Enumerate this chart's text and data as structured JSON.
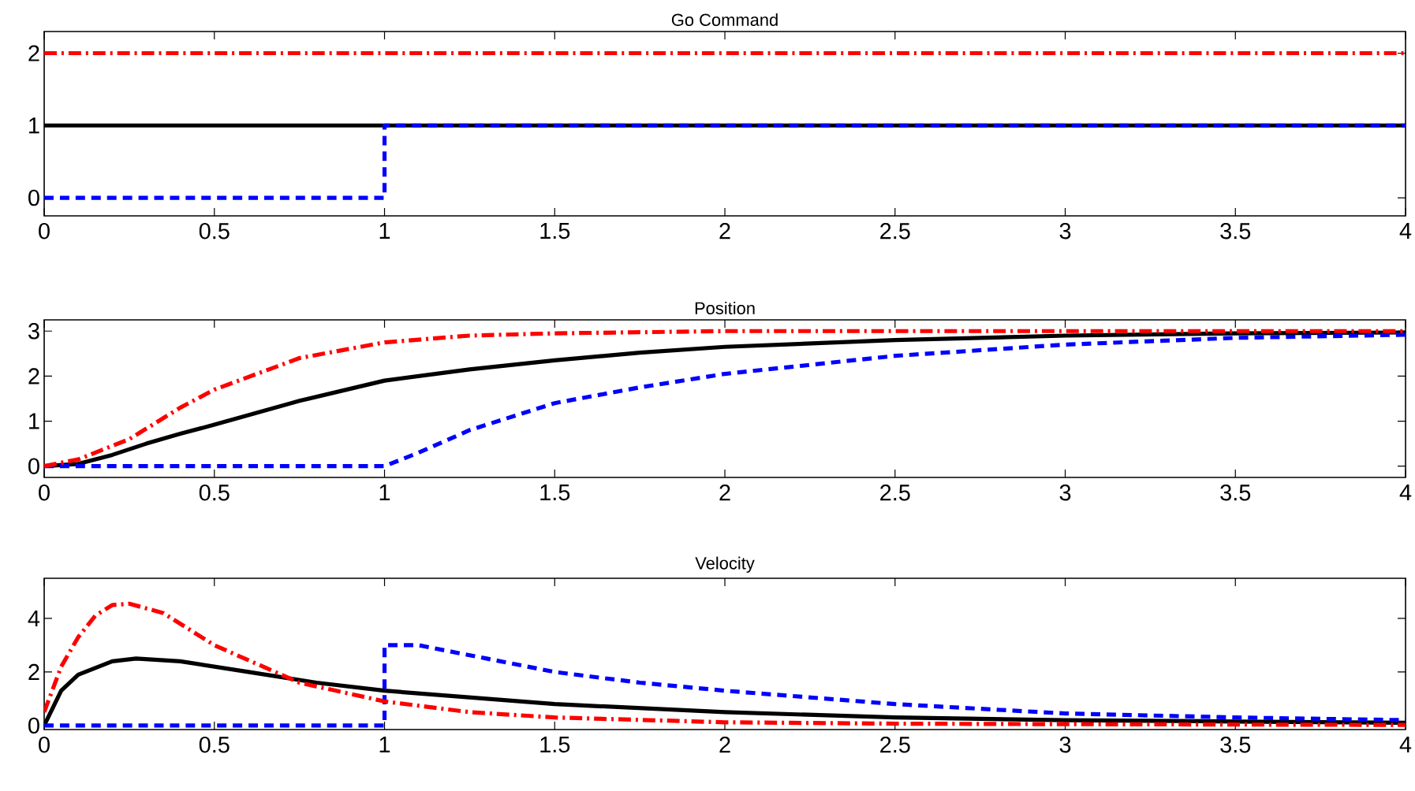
{
  "chart_data": [
    {
      "type": "line",
      "title": "Go Command",
      "xlim": [
        0,
        4
      ],
      "ylim": [
        -0.25,
        2.3
      ],
      "xticks": [
        0,
        0.5,
        1,
        1.5,
        2,
        2.5,
        3,
        3.5,
        4
      ],
      "yticks": [
        0,
        1,
        2
      ],
      "series": [
        {
          "color": "#000000",
          "line_style": "solid",
          "x": [
            0,
            4
          ],
          "values": [
            1,
            1
          ]
        },
        {
          "color": "#0000ff",
          "line_style": "dashed",
          "x": [
            0,
            1,
            1,
            4
          ],
          "values": [
            0,
            0,
            1,
            1
          ]
        },
        {
          "color": "#ff0000",
          "line_style": "dashdot",
          "x": [
            0,
            4
          ],
          "values": [
            2,
            2
          ]
        }
      ]
    },
    {
      "type": "line",
      "title": "Position",
      "xlim": [
        0,
        4
      ],
      "ylim": [
        -0.25,
        3.25
      ],
      "xticks": [
        0,
        0.5,
        1,
        1.5,
        2,
        2.5,
        3,
        3.5,
        4
      ],
      "yticks": [
        0,
        1,
        2,
        3
      ],
      "series": [
        {
          "color": "#000000",
          "line_style": "solid",
          "x": [
            0,
            0.1,
            0.2,
            0.3,
            0.4,
            0.5,
            0.75,
            1,
            1.25,
            1.5,
            1.75,
            2,
            2.5,
            3,
            3.5,
            4
          ],
          "values": [
            0,
            0.05,
            0.25,
            0.5,
            0.72,
            0.92,
            1.45,
            1.9,
            2.15,
            2.35,
            2.52,
            2.65,
            2.8,
            2.9,
            2.95,
            2.97
          ]
        },
        {
          "color": "#0000ff",
          "line_style": "dashed",
          "x": [
            0,
            1,
            1.1,
            1.25,
            1.5,
            1.75,
            2,
            2.5,
            3,
            3.5,
            4
          ],
          "values": [
            0,
            0,
            0.3,
            0.8,
            1.4,
            1.75,
            2.05,
            2.45,
            2.7,
            2.85,
            2.92
          ]
        },
        {
          "color": "#ff0000",
          "line_style": "dashdot",
          "x": [
            0,
            0.1,
            0.25,
            0.4,
            0.5,
            0.75,
            1,
            1.25,
            1.5,
            2,
            3,
            4
          ],
          "values": [
            0,
            0.15,
            0.6,
            1.3,
            1.7,
            2.4,
            2.75,
            2.9,
            2.95,
            3.0,
            3.0,
            3.0
          ]
        }
      ]
    },
    {
      "type": "line",
      "title": "Velocity",
      "xlim": [
        0,
        4
      ],
      "ylim": [
        -0.15,
        5.5
      ],
      "xticks": [
        0,
        0.5,
        1,
        1.5,
        2,
        2.5,
        3,
        3.5,
        4
      ],
      "yticks": [
        0,
        2,
        4
      ],
      "series": [
        {
          "color": "#000000",
          "line_style": "solid",
          "x": [
            0,
            0.05,
            0.1,
            0.2,
            0.27,
            0.4,
            0.6,
            0.8,
            1,
            1.5,
            2,
            2.5,
            3,
            3.5,
            4
          ],
          "values": [
            0,
            1.3,
            1.9,
            2.4,
            2.5,
            2.4,
            2.0,
            1.6,
            1.3,
            0.8,
            0.5,
            0.3,
            0.2,
            0.15,
            0.1
          ]
        },
        {
          "color": "#0000ff",
          "line_style": "dashed",
          "x": [
            0,
            1,
            1,
            1.1,
            1.3,
            1.5,
            1.75,
            2,
            2.5,
            3,
            3.5,
            4
          ],
          "values": [
            0,
            0,
            3.0,
            3.0,
            2.5,
            2.0,
            1.6,
            1.3,
            0.8,
            0.45,
            0.3,
            0.2
          ]
        },
        {
          "color": "#ff0000",
          "line_style": "dashdot",
          "x": [
            0,
            0.05,
            0.1,
            0.15,
            0.2,
            0.25,
            0.35,
            0.5,
            0.75,
            1,
            1.25,
            1.5,
            2,
            2.5,
            3,
            4
          ],
          "values": [
            0.5,
            2.2,
            3.3,
            4.1,
            4.5,
            4.55,
            4.2,
            3.0,
            1.6,
            0.9,
            0.5,
            0.3,
            0.12,
            0.07,
            0.05,
            0.02
          ]
        }
      ]
    }
  ]
}
